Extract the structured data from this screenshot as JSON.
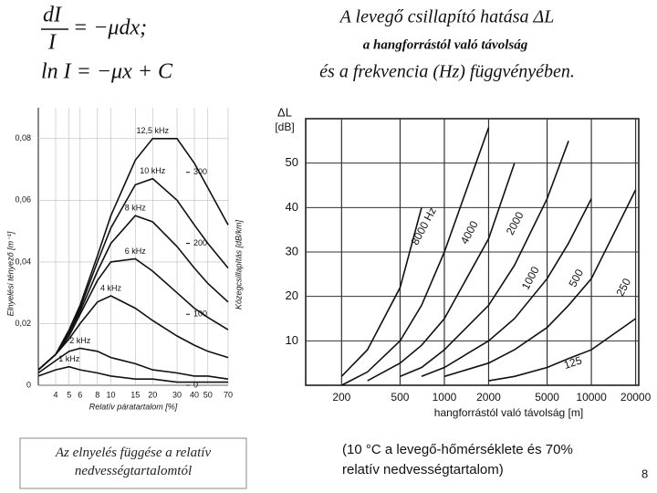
{
  "slide": {
    "formula_1": {
      "numerator": "dI",
      "denominator": "I",
      "rhs": "= −μdx;"
    },
    "formula_2": "ln I = −μx + C",
    "title": "A levegő csillapító hatása ΔL",
    "subtitle_1": "a hangforrástól való távolság",
    "subtitle_2": "és a frekvencia (Hz) függvényében.",
    "caption_left": "Az elnyelés függése a relatív nedvességtartalomtól",
    "caption_right": "(10 °C a levegő-hőmérséklete és 70% relatív nedvességtartalom)",
    "page_number": "8"
  },
  "chart_data": [
    {
      "type": "line",
      "x_label": "Relatív páratartalom [%]",
      "y_label": "Elnyelési tényező [m⁻¹]",
      "y2_label": "Közegcsillapítás [dB/km]",
      "log_x": true,
      "grid": true,
      "x": [
        3,
        4,
        5,
        6,
        8,
        10,
        15,
        20,
        30,
        40,
        50,
        70
      ],
      "xlim": [
        3,
        70
      ],
      "xticks": [
        4,
        5,
        6,
        8,
        10,
        15,
        20,
        30,
        40,
        50,
        70
      ],
      "ylim": [
        0,
        0.09
      ],
      "yticks": [
        0,
        {
          "value": 0.02,
          "label": "0,02"
        },
        {
          "value": 0.04,
          "label": "0,04"
        },
        {
          "value": 0.06,
          "label": "0,06"
        },
        {
          "value": 0.08,
          "label": "0,08"
        }
      ],
      "y2lim": [
        0,
        391
      ],
      "y2ticks": [
        0,
        100,
        200,
        300
      ],
      "series": [
        {
          "name": "12,5 kHz",
          "color": "#111111",
          "values": [
            0.005,
            0.01,
            0.018,
            0.026,
            0.042,
            0.055,
            0.073,
            0.08,
            0.08,
            0.072,
            0.064,
            0.052
          ]
        },
        {
          "name": "10 kHz",
          "color": "#111111",
          "values": [
            0.005,
            0.01,
            0.017,
            0.025,
            0.04,
            0.051,
            0.065,
            0.067,
            0.06,
            0.052,
            0.046,
            0.038
          ]
        },
        {
          "name": "8 kHz",
          "color": "#111111",
          "values": [
            0.005,
            0.01,
            0.017,
            0.024,
            0.037,
            0.046,
            0.055,
            0.053,
            0.045,
            0.038,
            0.033,
            0.027
          ]
        },
        {
          "name": "6 kHz",
          "color": "#111111",
          "values": [
            0.005,
            0.01,
            0.016,
            0.023,
            0.034,
            0.04,
            0.041,
            0.037,
            0.03,
            0.025,
            0.022,
            0.018
          ]
        },
        {
          "name": "4 kHz",
          "color": "#111111",
          "values": [
            0.005,
            0.01,
            0.015,
            0.02,
            0.027,
            0.029,
            0.025,
            0.021,
            0.016,
            0.013,
            0.011,
            0.009
          ]
        },
        {
          "name": "2 kHz",
          "color": "#111111",
          "values": [
            0.004,
            0.008,
            0.011,
            0.012,
            0.011,
            0.009,
            0.007,
            0.005,
            0.004,
            0.003,
            0.003,
            0.002
          ]
        },
        {
          "name": "1 kHz",
          "color": "#111111",
          "values": [
            0.003,
            0.005,
            0.006,
            0.005,
            0.004,
            0.003,
            0.002,
            0.002,
            0.001,
            0.001,
            0.001,
            0.001
          ]
        }
      ]
    },
    {
      "type": "line",
      "x_label": "hangforrástól való távolság [m]",
      "y_label": "ΔL",
      "y_unit": "[dB]",
      "log_x": true,
      "grid": true,
      "x": [
        200,
        300,
        500,
        700,
        1000,
        2000,
        3000,
        5000,
        7000,
        10000,
        20000
      ],
      "xlim": [
        114,
        21000
      ],
      "xticks": [
        200,
        500,
        1000,
        2000,
        5000,
        10000,
        20000
      ],
      "ylim": [
        0,
        60
      ],
      "yticks": [
        10,
        20,
        30,
        40,
        50
      ],
      "series": [
        {
          "name": "8000 Hz",
          "color": "#111111",
          "values": [
            2,
            8,
            22,
            40,
            null,
            null,
            null,
            null,
            null,
            null,
            null
          ]
        },
        {
          "name": "4000",
          "color": "#111111",
          "values": [
            0,
            3,
            10,
            18,
            30,
            58,
            null,
            null,
            null,
            null,
            null
          ]
        },
        {
          "name": "2000",
          "color": "#111111",
          "values": [
            null,
            1,
            5,
            9,
            15,
            33,
            50,
            null,
            null,
            null,
            null
          ]
        },
        {
          "name": "1000",
          "color": "#111111",
          "values": [
            null,
            null,
            2,
            4,
            8,
            18,
            27,
            42,
            55,
            null,
            null
          ]
        },
        {
          "name": "500",
          "color": "#111111",
          "values": [
            null,
            null,
            null,
            2,
            4,
            10,
            15,
            24,
            32,
            42,
            null
          ]
        },
        {
          "name": "250",
          "color": "#111111",
          "values": [
            null,
            null,
            null,
            null,
            2,
            5,
            8,
            13,
            18,
            24,
            44
          ]
        },
        {
          "name": "125",
          "color": "#111111",
          "values": [
            null,
            null,
            null,
            null,
            null,
            1,
            2,
            4,
            6,
            8,
            15
          ]
        }
      ]
    }
  ]
}
